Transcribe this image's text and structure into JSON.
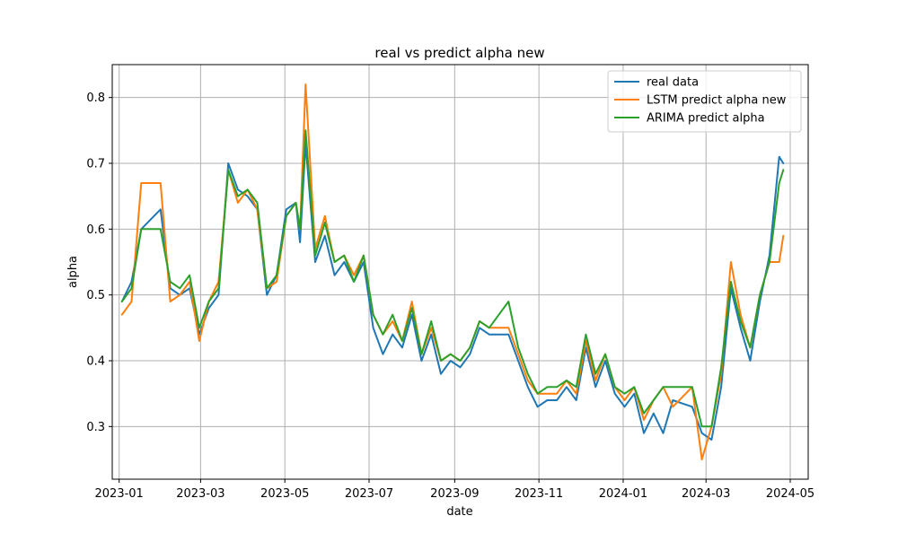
{
  "chart_data": {
    "type": "line",
    "title": "real vs predict alpha new",
    "xlabel": "date",
    "ylabel": "alpha",
    "xlim": [
      "2022-12-27",
      "2024-05-14"
    ],
    "ylim": [
      0.22,
      0.85
    ],
    "x_ticks": [
      {
        "date": "2023-01-01",
        "label": "2023-01"
      },
      {
        "date": "2023-03-01",
        "label": "2023-03"
      },
      {
        "date": "2023-05-01",
        "label": "2023-05"
      },
      {
        "date": "2023-07-01",
        "label": "2023-07"
      },
      {
        "date": "2023-09-01",
        "label": "2023-09"
      },
      {
        "date": "2023-11-01",
        "label": "2023-11"
      },
      {
        "date": "2024-01-01",
        "label": "2024-01"
      },
      {
        "date": "2024-03-01",
        "label": "2024-03"
      },
      {
        "date": "2024-05-01",
        "label": "2024-05"
      }
    ],
    "y_ticks": [
      0.3,
      0.4,
      0.5,
      0.6,
      0.7,
      0.8
    ],
    "y_tick_labels": [
      "0.3",
      "0.4",
      "0.5",
      "0.6",
      "0.7",
      "0.8"
    ],
    "grid": true,
    "legend_position": "top-right",
    "x": [
      "2023-01-03",
      "2023-01-10",
      "2023-01-17",
      "2023-01-31",
      "2023-02-07",
      "2023-02-14",
      "2023-02-21",
      "2023-02-28",
      "2023-03-07",
      "2023-03-14",
      "2023-03-21",
      "2023-03-28",
      "2023-04-04",
      "2023-04-11",
      "2023-04-18",
      "2023-04-25",
      "2023-05-02",
      "2023-05-09",
      "2023-05-12",
      "2023-05-16",
      "2023-05-23",
      "2023-05-30",
      "2023-06-06",
      "2023-06-13",
      "2023-06-20",
      "2023-06-27",
      "2023-07-04",
      "2023-07-11",
      "2023-07-18",
      "2023-07-25",
      "2023-08-01",
      "2023-08-08",
      "2023-08-15",
      "2023-08-22",
      "2023-08-29",
      "2023-09-05",
      "2023-09-12",
      "2023-09-19",
      "2023-09-26",
      "2023-10-10",
      "2023-10-17",
      "2023-10-24",
      "2023-10-31",
      "2023-11-07",
      "2023-11-14",
      "2023-11-21",
      "2023-11-28",
      "2023-12-05",
      "2023-12-12",
      "2023-12-19",
      "2023-12-26",
      "2024-01-02",
      "2024-01-09",
      "2024-01-16",
      "2024-01-23",
      "2024-01-30",
      "2024-02-06",
      "2024-02-20",
      "2024-02-27",
      "2024-03-05",
      "2024-03-12",
      "2024-03-19",
      "2024-03-26",
      "2024-04-02",
      "2024-04-09",
      "2024-04-16",
      "2024-04-23",
      "2024-04-26"
    ],
    "series": [
      {
        "name": "real data",
        "color": "#1f77b4",
        "values": [
          0.49,
          0.52,
          0.6,
          0.63,
          0.51,
          0.5,
          0.51,
          0.44,
          0.48,
          0.5,
          0.7,
          0.66,
          0.65,
          0.63,
          0.5,
          0.53,
          0.63,
          0.64,
          0.58,
          0.73,
          0.55,
          0.59,
          0.53,
          0.55,
          0.52,
          0.55,
          0.45,
          0.41,
          0.44,
          0.42,
          0.47,
          0.4,
          0.44,
          0.38,
          0.4,
          0.39,
          0.41,
          0.45,
          0.44,
          0.44,
          0.4,
          0.36,
          0.33,
          0.34,
          0.34,
          0.36,
          0.34,
          0.42,
          0.36,
          0.4,
          0.35,
          0.33,
          0.35,
          0.29,
          0.32,
          0.29,
          0.34,
          0.33,
          0.29,
          0.28,
          0.36,
          0.51,
          0.45,
          0.4,
          0.49,
          0.56,
          0.71,
          0.7
        ]
      },
      {
        "name": "LSTM predict alpha new",
        "color": "#ff7f0e",
        "values": [
          0.47,
          0.49,
          0.67,
          0.67,
          0.49,
          0.5,
          0.52,
          0.43,
          0.49,
          0.52,
          0.69,
          0.64,
          0.66,
          0.63,
          0.51,
          0.52,
          0.62,
          0.64,
          0.6,
          0.82,
          0.57,
          0.62,
          0.55,
          0.56,
          0.53,
          0.56,
          0.47,
          0.44,
          0.46,
          0.43,
          0.49,
          0.41,
          0.45,
          0.4,
          0.41,
          0.4,
          0.42,
          0.46,
          0.45,
          0.45,
          0.41,
          0.37,
          0.35,
          0.35,
          0.35,
          0.37,
          0.35,
          0.43,
          0.37,
          0.41,
          0.36,
          0.34,
          0.36,
          0.31,
          0.34,
          0.36,
          0.33,
          0.36,
          0.25,
          0.3,
          0.38,
          0.55,
          0.47,
          0.42,
          0.5,
          0.55,
          0.55,
          0.59
        ]
      },
      {
        "name": "ARIMA predict alpha",
        "color": "#2ca02c",
        "values": [
          0.49,
          0.51,
          0.6,
          0.6,
          0.52,
          0.51,
          0.53,
          0.45,
          0.49,
          0.51,
          0.69,
          0.65,
          0.66,
          0.64,
          0.51,
          0.53,
          0.62,
          0.64,
          0.6,
          0.75,
          0.56,
          0.61,
          0.55,
          0.56,
          0.52,
          0.56,
          0.47,
          0.44,
          0.47,
          0.43,
          0.48,
          0.41,
          0.46,
          0.4,
          0.41,
          0.4,
          0.42,
          0.46,
          0.45,
          0.49,
          0.42,
          0.38,
          0.35,
          0.36,
          0.36,
          0.37,
          0.36,
          0.44,
          0.38,
          0.41,
          0.36,
          0.35,
          0.36,
          0.32,
          0.34,
          0.36,
          0.36,
          0.36,
          0.3,
          0.3,
          0.39,
          0.52,
          0.46,
          0.42,
          0.5,
          0.55,
          0.67,
          0.69
        ]
      }
    ]
  }
}
